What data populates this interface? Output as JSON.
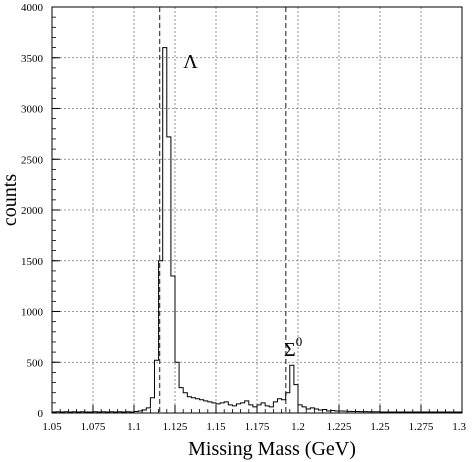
{
  "chart_data": {
    "type": "histogram",
    "title": "",
    "xlabel": "Missing Mass (GeV)",
    "ylabel": "counts",
    "xlim": [
      1.05,
      1.3
    ],
    "ylim": [
      0,
      4000
    ],
    "grid": true,
    "grid_style": "dotted",
    "xticks": [
      "1.05",
      "1.075",
      "1.1",
      "1.125",
      "1.15",
      "1.175",
      "1.2",
      "1.225",
      "1.25",
      "1.275",
      "1.3"
    ],
    "yticks": [
      "0",
      "500",
      "1000",
      "1500",
      "2000",
      "2500",
      "3000",
      "3500",
      "4000"
    ],
    "bin_width": 0.0025,
    "bins_start": 1.05,
    "values": [
      10,
      12,
      10,
      12,
      10,
      12,
      10,
      12,
      10,
      10,
      12,
      10,
      12,
      10,
      12,
      10,
      12,
      10,
      12,
      10,
      15,
      20,
      30,
      50,
      150,
      520,
      1500,
      3600,
      2720,
      1350,
      500,
      250,
      200,
      160,
      150,
      140,
      130,
      120,
      110,
      100,
      90,
      100,
      110,
      80,
      70,
      90,
      100,
      120,
      80,
      60,
      80,
      100,
      70,
      60,
      110,
      140,
      130,
      200,
      470,
      280,
      80,
      60,
      40,
      50,
      40,
      30,
      35,
      20,
      25,
      20,
      20,
      18,
      16,
      15,
      15,
      14,
      13,
      12,
      12,
      12,
      10,
      10,
      10,
      10,
      10,
      10,
      10,
      10,
      10,
      10,
      10,
      10,
      10,
      10,
      10,
      10,
      10,
      10,
      10,
      10
    ],
    "reference_lines_x": [
      1.1157,
      1.1926
    ],
    "annotations": [
      {
        "text": "Λ",
        "superscript": ""
      },
      {
        "text": "Σ",
        "superscript": "0"
      }
    ]
  }
}
